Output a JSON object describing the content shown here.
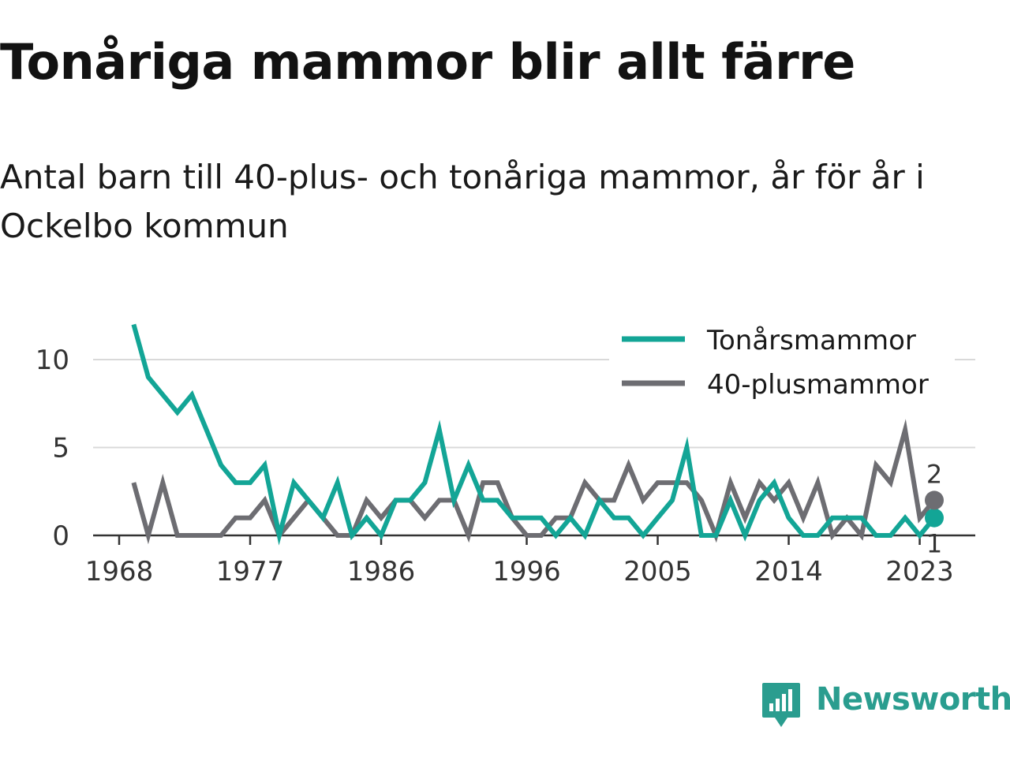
{
  "title": "Tonåriga mammor blir allt färre",
  "subtitle": "Antal barn till 40-plus- och tonåriga mammor, år för år i Ockelbo kommun",
  "brand": {
    "name": "Newsworthy",
    "icon": "newsworthy-logo-icon",
    "color": "#2a9d8f"
  },
  "chart_data": {
    "type": "line",
    "x": [
      1969,
      1970,
      1971,
      1972,
      1973,
      1974,
      1975,
      1976,
      1977,
      1978,
      1979,
      1980,
      1981,
      1982,
      1983,
      1984,
      1985,
      1986,
      1987,
      1988,
      1989,
      1990,
      1991,
      1992,
      1993,
      1994,
      1995,
      1996,
      1997,
      1998,
      1999,
      2000,
      2001,
      2002,
      2003,
      2004,
      2005,
      2006,
      2007,
      2008,
      2009,
      2010,
      2011,
      2012,
      2013,
      2014,
      2015,
      2016,
      2017,
      2018,
      2019,
      2020,
      2021,
      2022,
      2023,
      2024
    ],
    "series": [
      {
        "name": "Tonårsmammor",
        "color": "#13a596",
        "values": [
          12,
          9,
          8,
          7,
          8,
          6,
          4,
          3,
          3,
          4,
          0,
          3,
          2,
          1,
          3,
          0,
          1,
          0,
          2,
          2,
          3,
          6,
          2,
          4,
          2,
          2,
          1,
          1,
          1,
          0,
          1,
          0,
          2,
          1,
          1,
          0,
          1,
          2,
          5,
          0,
          0,
          2,
          0,
          2,
          3,
          1,
          0,
          0,
          1,
          1,
          1,
          0,
          0,
          1,
          0,
          1
        ]
      },
      {
        "name": "40-plusmammor",
        "color": "#6d6d72",
        "values": [
          3,
          0,
          3,
          0,
          0,
          0,
          0,
          1,
          1,
          2,
          0,
          1,
          2,
          1,
          0,
          0,
          2,
          1,
          2,
          2,
          1,
          2,
          2,
          0,
          3,
          3,
          1,
          0,
          0,
          1,
          1,
          3,
          2,
          2,
          4,
          2,
          3,
          3,
          3,
          2,
          0,
          3,
          1,
          3,
          2,
          3,
          1,
          3,
          0,
          1,
          0,
          4,
          3,
          6,
          1,
          2
        ]
      }
    ],
    "end_labels": {
      "Tonårsmammor": "1",
      "40-plusmammor": "2"
    },
    "x_ticks": [
      "1968",
      "1977",
      "1986",
      "1996",
      "2005",
      "2014",
      "2023"
    ],
    "y_ticks": [
      "0",
      "5",
      "10"
    ],
    "ylim": [
      0,
      12
    ],
    "grid": "horizontal",
    "legend_position": "top-right"
  }
}
